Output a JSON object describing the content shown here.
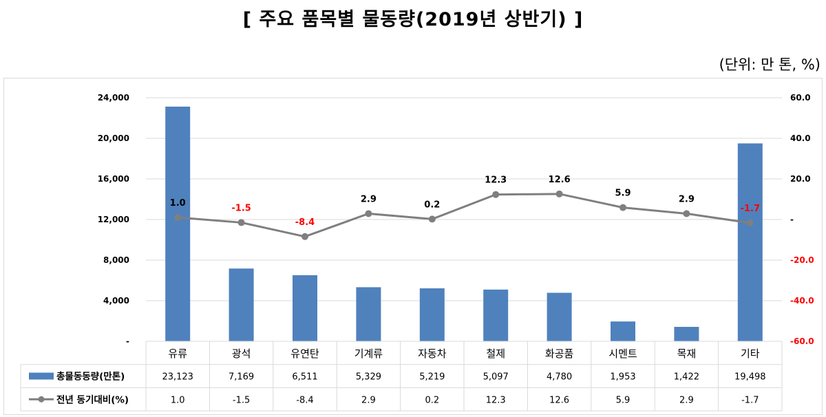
{
  "title": "[ 주요 품목별 물동량(2019년 상반기) ]",
  "unit": "(단위: 만 톤, %)",
  "colors": {
    "bar": "#4f81bd",
    "line": "#7f7f7f",
    "negative": "#ff0000",
    "grid": "#d9d9d9"
  },
  "chart_data": {
    "type": "bar",
    "categories": [
      "유류",
      "광석",
      "유연탄",
      "기계류",
      "자동차",
      "철제",
      "화공품",
      "시멘트",
      "목재",
      "기타"
    ],
    "series": [
      {
        "name": "총물동동량(만톤)",
        "type": "bar",
        "axis": "left",
        "values": [
          23123,
          7169,
          6511,
          5329,
          5219,
          5097,
          4780,
          1953,
          1422,
          19498
        ],
        "table_labels": [
          "23,123",
          "7,169",
          "6,511",
          "5,329",
          "5,219",
          "5,097",
          "4,780",
          "1,953",
          "1,422",
          "19,498"
        ]
      },
      {
        "name": "전년 동기대비(%)",
        "type": "line",
        "axis": "right",
        "values": [
          1.0,
          -1.5,
          -8.4,
          2.9,
          0.2,
          12.3,
          12.6,
          5.9,
          2.9,
          -1.7
        ],
        "table_labels": [
          "1.0",
          "-1.5",
          "-8.4",
          "2.9",
          "0.2",
          "12.3",
          "12.6",
          "5.9",
          "2.9",
          "-1.7"
        ]
      }
    ],
    "y_left": {
      "ylim": [
        0,
        24000
      ],
      "ticks": [
        0,
        4000,
        8000,
        12000,
        16000,
        20000,
        24000
      ],
      "tick_labels": [
        "-",
        "4,000",
        "8,000",
        "12,000",
        "16,000",
        "20,000",
        "24,000"
      ]
    },
    "y_right": {
      "ylim": [
        -60,
        60
      ],
      "ticks": [
        -60,
        -40,
        -20,
        0,
        20,
        40,
        60
      ],
      "tick_labels": [
        "-60.0",
        "-40.0",
        "-20.0",
        "-",
        "20.0",
        "40.0",
        "60.0"
      ]
    },
    "grid": true,
    "legend": "data-table"
  }
}
